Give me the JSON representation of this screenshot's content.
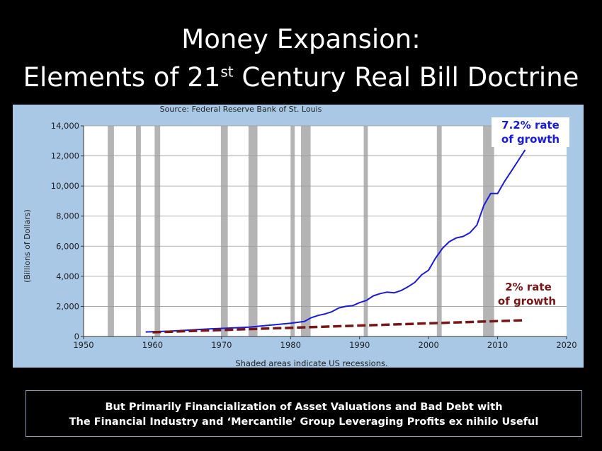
{
  "slide": {
    "title_line1": "Money Expansion:",
    "title_line2_prefix": "Elements of 21",
    "title_line2_sup": "st",
    "title_line2_suffix": " Century Real Bill Doctrine",
    "caption_line1": "But Primarily  Financialization of Asset Valuations and Bad Debt with",
    "caption_line2": "The Financial Industry and ‘Mercantile’ Group Leveraging Profits ex nihilo Useful"
  },
  "chart_data": {
    "type": "line",
    "source": "Source: Federal Reserve Bank of St. Louis",
    "footnote": "Shaded areas indicate US recessions.",
    "ylabel": "(Billions of Dollars)",
    "xlim": [
      1950,
      2020
    ],
    "ylim": [
      0,
      14000
    ],
    "x_ticks": [
      1950,
      1960,
      1970,
      1980,
      1990,
      2000,
      2010,
      2020
    ],
    "y_ticks": [
      0,
      2000,
      4000,
      6000,
      8000,
      10000,
      12000,
      14000
    ],
    "y_tick_labels": [
      "0",
      "2,000",
      "4,000",
      "6,000",
      "8,000",
      "10,000",
      "12,000",
      "14,000"
    ],
    "recessions": [
      [
        1953.5,
        1954.4
      ],
      [
        1957.6,
        1958.3
      ],
      [
        1960.3,
        1961.1
      ],
      [
        1969.9,
        1970.9
      ],
      [
        1973.9,
        1975.2
      ],
      [
        1980.0,
        1980.6
      ],
      [
        1981.5,
        1982.9
      ],
      [
        1990.6,
        1991.2
      ],
      [
        2001.2,
        2001.9
      ],
      [
        2007.9,
        2009.5
      ]
    ],
    "series": [
      {
        "color": "#1a1adc",
        "style": "solid",
        "x": [
          1959,
          1962,
          1965,
          1968,
          1971,
          1974,
          1977,
          1980,
          1982,
          1983,
          1984,
          1985,
          1986,
          1987,
          1988,
          1989,
          1990,
          1991,
          1992,
          1993,
          1994,
          1995,
          1996,
          1997,
          1998,
          1999,
          2000,
          2001,
          2002,
          2003,
          2004,
          2005,
          2006,
          2007,
          2008,
          2009,
          2010,
          2011,
          2012,
          2013,
          2014
        ],
        "y": [
          300,
          350,
          420,
          500,
          560,
          620,
          750,
          880,
          1000,
          1250,
          1400,
          1500,
          1650,
          1900,
          2000,
          2050,
          2250,
          2400,
          2700,
          2850,
          2950,
          2900,
          3050,
          3300,
          3600,
          4100,
          4400,
          5200,
          5850,
          6300,
          6550,
          6650,
          6900,
          7400,
          8700,
          9500,
          9500,
          10300,
          11000,
          11700,
          12400
        ]
      },
      {
        "color": "#7a1515",
        "style": "dashed",
        "x": [
          1960,
          2014
        ],
        "y": [
          280,
          1080
        ]
      }
    ],
    "annotations": [
      {
        "lines": [
          "7.2% rate",
          "of growth"
        ],
        "color": "#1a1adc"
      },
      {
        "lines": [
          "2% rate",
          "of growth"
        ],
        "color": "#7a1515"
      }
    ],
    "grid": true
  }
}
